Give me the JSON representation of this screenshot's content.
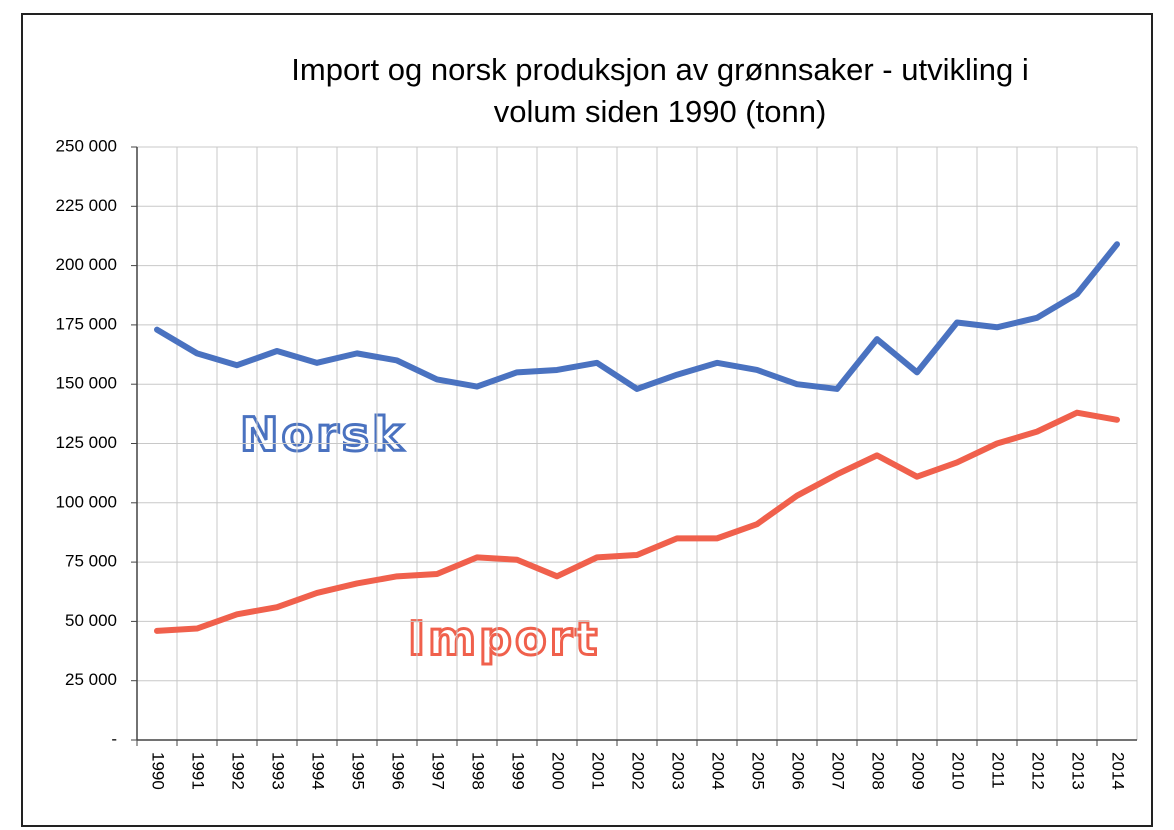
{
  "chart_data": {
    "type": "line",
    "title": [
      "Import og norsk produksjon av grønnsaker - utvikling i",
      "volum siden 1990 (tonn)"
    ],
    "categories": [
      "1990",
      "1991",
      "1992",
      "1993",
      "1994",
      "1995",
      "1996",
      "1997",
      "1998",
      "1999",
      "2000",
      "2001",
      "2002",
      "2003",
      "2004",
      "2005",
      "2006",
      "2007",
      "2008",
      "2009",
      "2010",
      "2011",
      "2012",
      "2013",
      "2014"
    ],
    "series": [
      {
        "name": "Norsk",
        "color": "#4a72c0",
        "values": [
          173000,
          163000,
          158000,
          164000,
          159000,
          163000,
          160000,
          152000,
          149000,
          155000,
          156000,
          159000,
          148000,
          154000,
          159000,
          156000,
          150000,
          148000,
          169000,
          155000,
          176000,
          174000,
          178000,
          188000,
          209000
        ]
      },
      {
        "name": "Import",
        "color": "#f0604c",
        "values": [
          46000,
          47000,
          53000,
          56000,
          62000,
          66000,
          69000,
          70000,
          77000,
          76000,
          69000,
          77000,
          78000,
          85000,
          85000,
          91000,
          103000,
          112000,
          120000,
          111000,
          117000,
          125000,
          130000,
          138000,
          135000
        ]
      }
    ],
    "ylim": [
      0,
      250000
    ],
    "yticks": [
      {
        "value": 0,
        "label": "-"
      },
      {
        "value": 25000,
        "label": "25 000"
      },
      {
        "value": 50000,
        "label": "50 000"
      },
      {
        "value": 75000,
        "label": "75 000"
      },
      {
        "value": 100000,
        "label": "100 000"
      },
      {
        "value": 125000,
        "label": "125 000"
      },
      {
        "value": 150000,
        "label": "150 000"
      },
      {
        "value": 175000,
        "label": "175 000"
      },
      {
        "value": 200000,
        "label": "200 000"
      },
      {
        "value": 225000,
        "label": "225 000"
      },
      {
        "value": 250000,
        "label": "250 000"
      }
    ],
    "grid": true
  }
}
